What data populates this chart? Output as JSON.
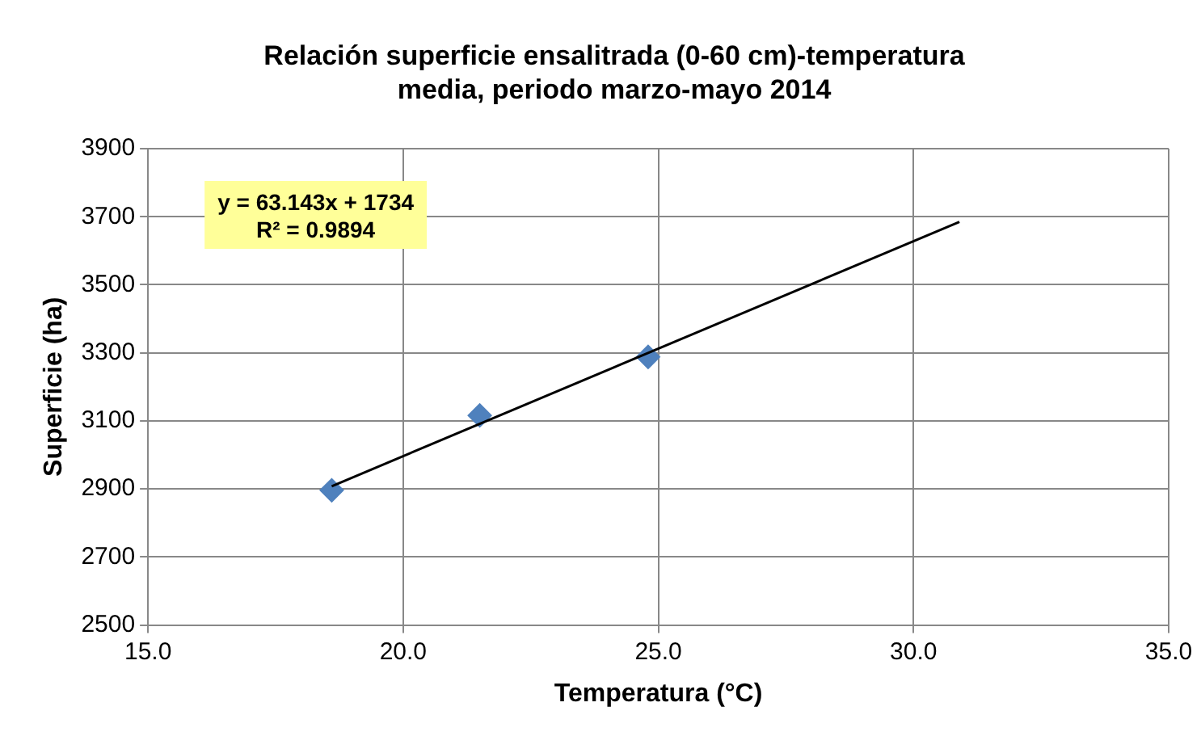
{
  "chart_data": {
    "type": "scatter",
    "title": "Relación superficie ensalitrada (0-60 cm)-temperatura media, periodo marzo-mayo 2014",
    "xlabel": "Temperatura (°C)",
    "ylabel": "Superficie (ha)",
    "series": [
      {
        "type": "scatter",
        "color": "#4f81bd",
        "x": [
          18.6,
          21.5,
          24.8
        ],
        "values": [
          2896,
          3116,
          3288
        ],
        "marker": "diamond"
      },
      {
        "type": "line",
        "color": "#000000",
        "x": [
          18.6,
          30.9
        ],
        "values": [
          2908,
          3685
        ],
        "marker": "none"
      }
    ],
    "annotations": [
      "y = 63.143x + 1734\nR² = 0.9894"
    ],
    "xlim": [
      15,
      35
    ],
    "xticks": [
      {
        "value": 15,
        "label": "15.0"
      },
      {
        "value": 20,
        "label": "20.0"
      },
      {
        "value": 25,
        "label": "25.0"
      },
      {
        "value": 30,
        "label": "30.0"
      },
      {
        "value": 35,
        "label": "35.0"
      }
    ],
    "ylim": [
      2500,
      3900
    ],
    "yticks": [
      2500,
      2700,
      2900,
      3100,
      3300,
      3500,
      3700,
      3900
    ],
    "grid": true,
    "legend": false
  }
}
